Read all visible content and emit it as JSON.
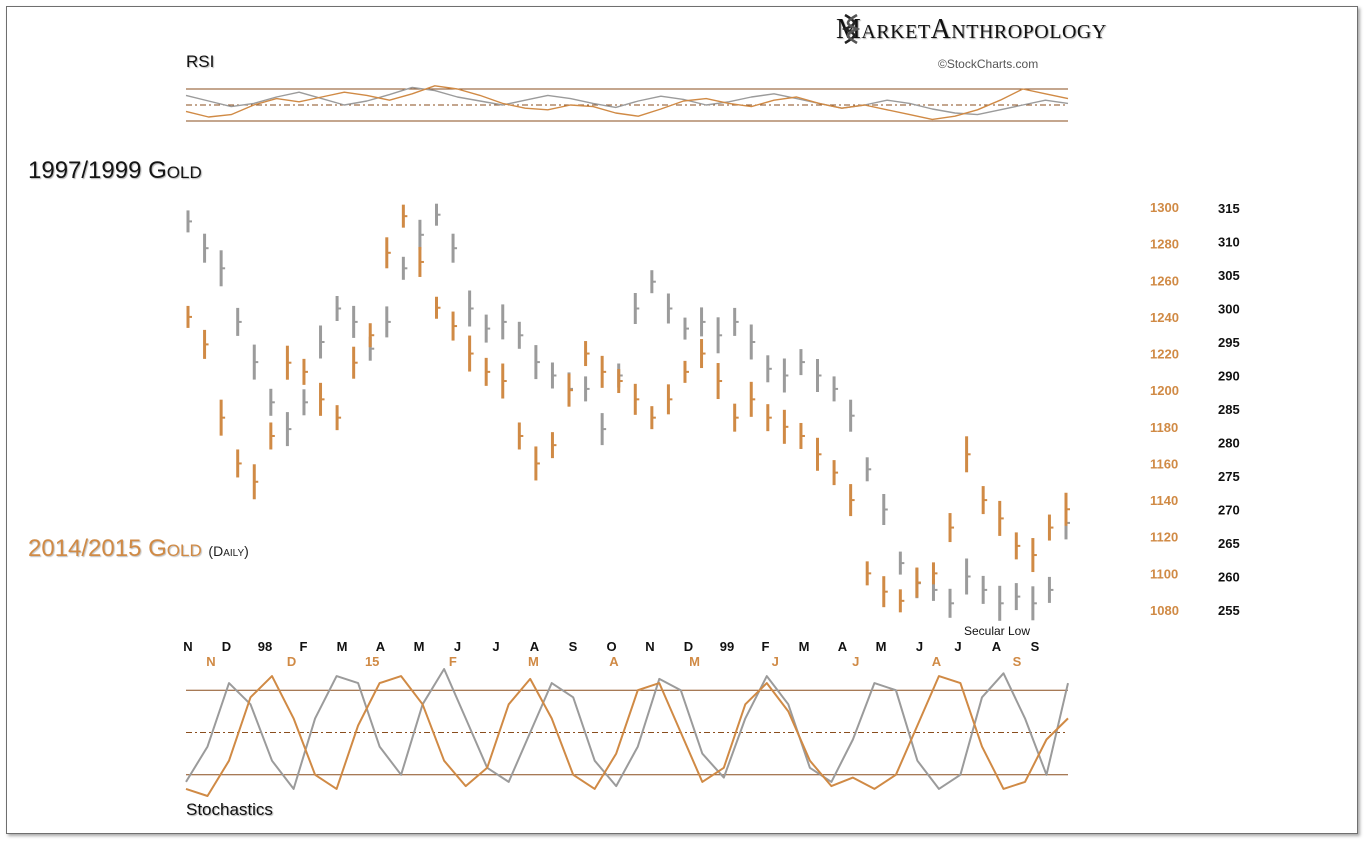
{
  "brand": {
    "left": "Market",
    "right": "Anthropology",
    "icon": "dna-helix-icon"
  },
  "source": "©StockCharts.com",
  "labels": {
    "rsi": "RSI",
    "stochastics": "Stochastics",
    "title_1997": "1997/1999  Gold",
    "title_2014": "2014/2015  Gold",
    "title_2014_sub": "(Daily)",
    "secular_low": "Secular Low"
  },
  "colors": {
    "gold_2014": "#d08a45",
    "gold_1997": "#9b9b9b",
    "overlap": "#6b3d12",
    "band_line": "#8a4e1e"
  },
  "chart_data": [
    {
      "type": "line",
      "name": "RSI",
      "ylim": [
        0,
        100
      ],
      "reference_lines": [
        70,
        50,
        30
      ],
      "series": [
        {
          "name": "1997/1999",
          "values": [
            62,
            55,
            48,
            52,
            60,
            66,
            58,
            50,
            55,
            63,
            72,
            68,
            60,
            55,
            50,
            56,
            62,
            58,
            52,
            47,
            55,
            61,
            57,
            50,
            54,
            60,
            64,
            58,
            52,
            46,
            50,
            56,
            52,
            45,
            40,
            38,
            44,
            50,
            56,
            52
          ]
        },
        {
          "name": "2014/2015",
          "values": [
            42,
            35,
            38,
            50,
            58,
            54,
            60,
            66,
            62,
            56,
            64,
            74,
            70,
            62,
            52,
            46,
            44,
            50,
            48,
            40,
            36,
            45,
            55,
            58,
            52,
            48,
            56,
            60,
            52,
            46,
            50,
            44,
            38,
            32,
            36,
            44,
            56,
            70,
            64,
            58
          ]
        }
      ]
    },
    {
      "type": "bar",
      "name": "Gold price bars",
      "x_ticks_1997": [
        "N",
        "D",
        "98",
        "F",
        "M",
        "A",
        "M",
        "J",
        "J",
        "A",
        "S",
        "O",
        "N",
        "D",
        "99",
        "F",
        "M",
        "A",
        "M",
        "J",
        "J",
        "A",
        "S"
      ],
      "x_ticks_2014": [
        "N",
        "D",
        "15",
        "F",
        "M",
        "A",
        "M",
        "J",
        "J",
        "A",
        "S"
      ],
      "y_axis_2014": {
        "ticks": [
          1300,
          1280,
          1260,
          1240,
          1220,
          1200,
          1180,
          1160,
          1140,
          1120,
          1100,
          1080
        ]
      },
      "y_axis_1997": {
        "ticks": [
          315,
          310,
          305,
          300,
          295,
          290,
          285,
          280,
          275,
          270,
          265,
          260,
          255
        ]
      },
      "series": [
        {
          "name": "1997/1999 Gold",
          "axis": "right",
          "values": [
            313,
            309,
            306,
            298,
            292,
            286,
            282,
            286,
            295,
            300,
            298,
            294,
            298,
            306,
            311,
            314,
            309,
            300,
            297,
            298,
            296,
            292,
            290,
            288,
            288,
            282,
            290,
            300,
            304,
            300,
            297,
            298,
            296,
            298,
            295,
            291,
            290,
            292,
            290,
            288,
            284,
            276,
            270,
            262,
            259,
            258,
            256,
            260,
            258,
            256,
            257,
            256,
            258,
            268
          ]
        },
        {
          "name": "2014/2015 Gold",
          "axis": "left",
          "values": [
            1240,
            1225,
            1185,
            1160,
            1150,
            1175,
            1215,
            1210,
            1195,
            1185,
            1215,
            1230,
            1275,
            1295,
            1270,
            1245,
            1235,
            1220,
            1210,
            1205,
            1175,
            1160,
            1170,
            1200,
            1220,
            1210,
            1205,
            1195,
            1185,
            1195,
            1210,
            1220,
            1205,
            1185,
            1195,
            1185,
            1180,
            1175,
            1165,
            1155,
            1140,
            1100,
            1090,
            1085,
            1095,
            1100,
            1125,
            1165,
            1140,
            1130,
            1115,
            1110,
            1125,
            1135
          ]
        }
      ]
    },
    {
      "type": "line",
      "name": "Stochastics",
      "ylim": [
        0,
        100
      ],
      "reference_lines": [
        80,
        50,
        20
      ],
      "series": [
        {
          "name": "1997/1999",
          "values": [
            15,
            40,
            85,
            70,
            30,
            10,
            60,
            90,
            85,
            40,
            20,
            70,
            95,
            60,
            25,
            15,
            50,
            85,
            75,
            30,
            12,
            40,
            88,
            80,
            35,
            18,
            60,
            90,
            70,
            25,
            15,
            45,
            85,
            80,
            30,
            10,
            20,
            75,
            92,
            60,
            20,
            85
          ]
        },
        {
          "name": "2014/2015",
          "values": [
            10,
            5,
            30,
            75,
            90,
            60,
            20,
            10,
            55,
            85,
            90,
            70,
            30,
            12,
            25,
            70,
            88,
            60,
            20,
            10,
            35,
            80,
            85,
            50,
            15,
            25,
            70,
            85,
            65,
            30,
            12,
            18,
            10,
            20,
            55,
            90,
            85,
            40,
            10,
            15,
            45,
            60
          ]
        }
      ]
    }
  ]
}
